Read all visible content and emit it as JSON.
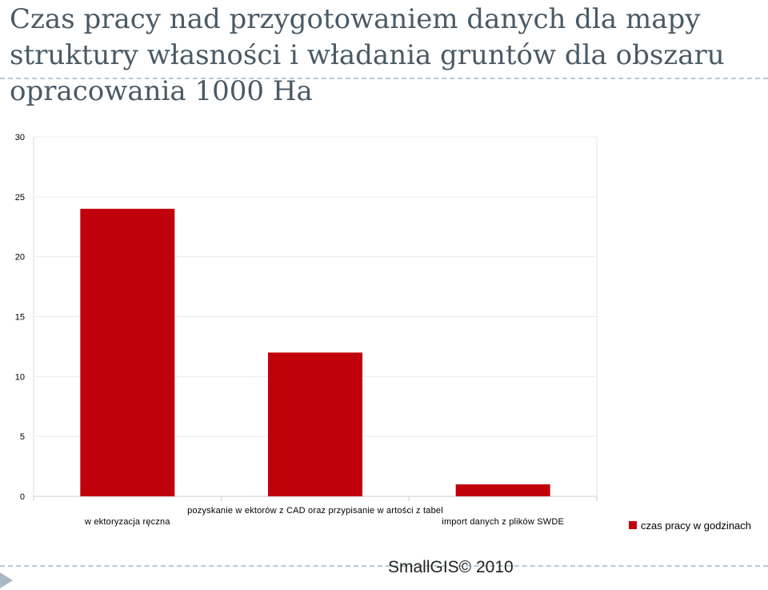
{
  "slide": {
    "title": "Czas pracy nad przygotowaniem danych dla mapy struktury własności i władania gruntów dla obszaru opracowania 1000 Ha",
    "footer": "SmallGIS© 2010"
  },
  "chart_data": {
    "type": "bar",
    "categories": [
      "w ektoryzacja ręczna",
      "pozyskanie w ektorów z CAD oraz przypisanie w artości z tabel",
      "import danych z plików SWDE"
    ],
    "series": [
      {
        "name": "czas pracy w godzinach",
        "values": [
          24,
          12,
          1
        ],
        "color": "#c0000b"
      }
    ],
    "ylim": [
      0,
      30
    ],
    "yticks": [
      0,
      5,
      10,
      15,
      20,
      25,
      30
    ],
    "grid": true,
    "legend": "right"
  }
}
